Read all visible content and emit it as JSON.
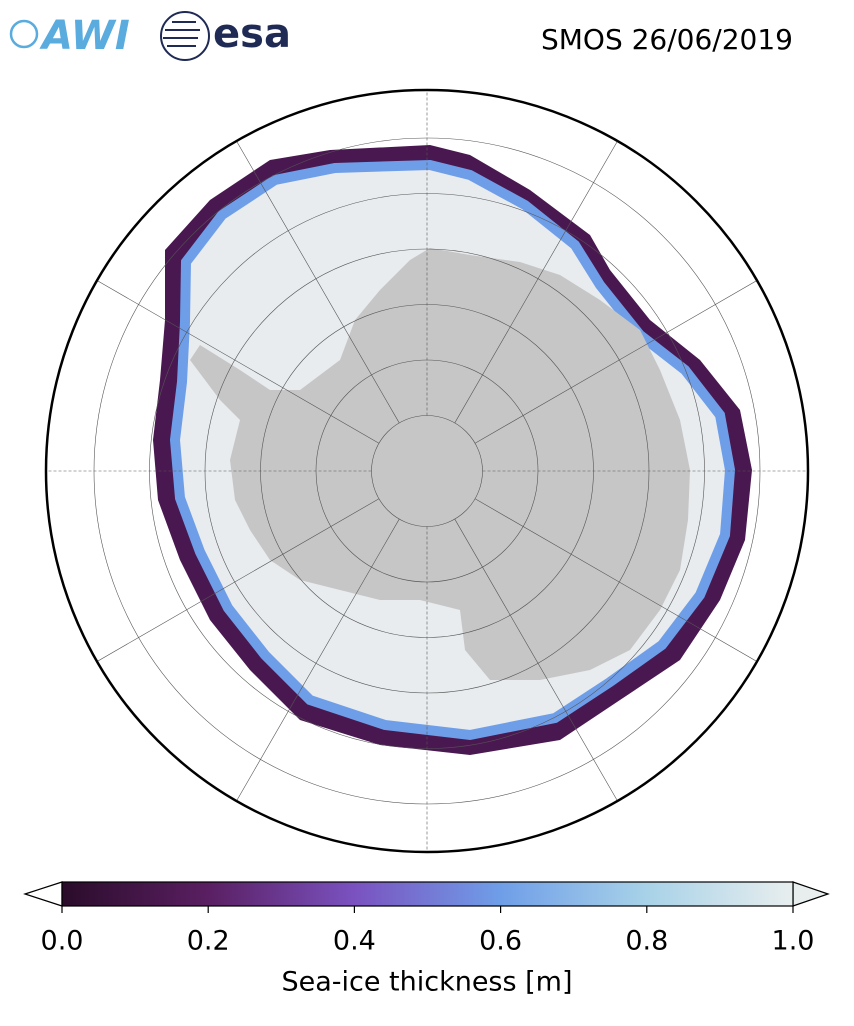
{
  "header": {
    "logos": [
      "AWI",
      "esa"
    ],
    "title": "SMOS 26/06/2019"
  },
  "colorbar": {
    "label": "Sea-ice thickness [m]",
    "lim": [
      0,
      1
    ],
    "ticks": [
      {
        "value": 0,
        "label": "0.0"
      },
      {
        "value": 0.2,
        "label": "0.2"
      },
      {
        "value": 0.4,
        "label": "0.4"
      },
      {
        "value": 0.6,
        "label": "0.6"
      },
      {
        "value": 0.8,
        "label": "0.8"
      },
      {
        "value": 1,
        "label": "1.0"
      }
    ],
    "colors": [
      "#2a0c2a",
      "#5a1f62",
      "#7a52c0",
      "#6f9ee8",
      "#a8d2e8",
      "#e8eeee"
    ]
  }
}
